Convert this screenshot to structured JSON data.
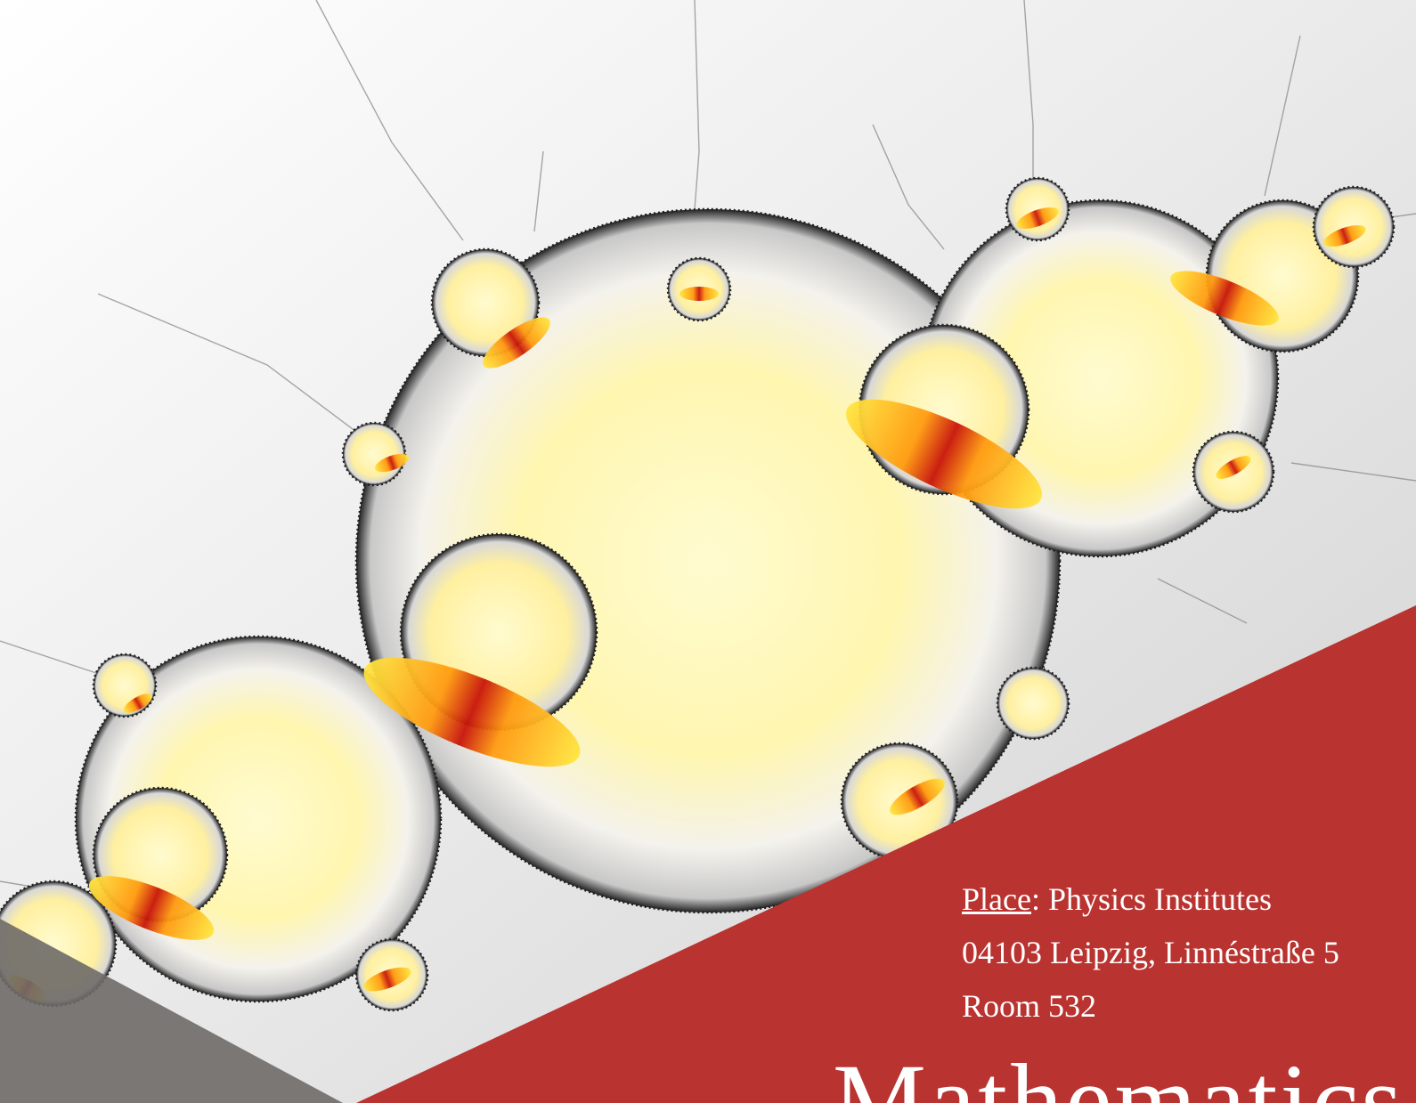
{
  "colors": {
    "panel": "#b93330",
    "panel_text": "#ffffff",
    "shadow_wedge": "#6e6a68",
    "fractal_hot": "#c8140a",
    "fractal_warm": "#ffd21e",
    "fractal_pale": "#fff8b8"
  },
  "artwork": {
    "subject": "fractal-julia-set-image"
  },
  "venue": {
    "place_label": "Place",
    "place_separator": ":",
    "place_value": " Physics Institutes",
    "address": "04103 Leipzig, Linnéstraße 5",
    "room": "Room 532"
  },
  "title": "Mathematics"
}
